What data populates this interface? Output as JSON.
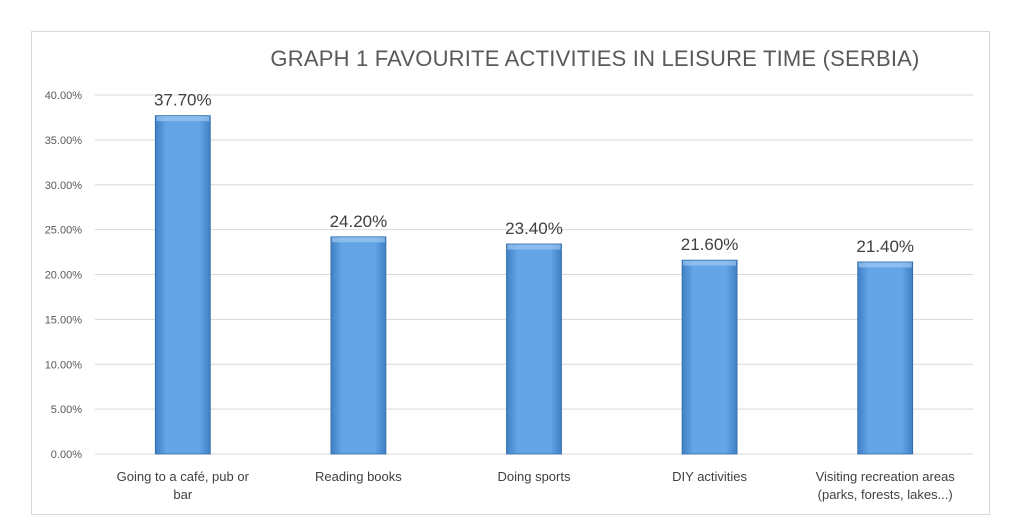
{
  "chart_data": {
    "type": "bar",
    "title": "GRAPH 1 FAVOURITE ACTIVITIES IN LEISURE TIME (SERBIA)",
    "categories": [
      [
        "Going to a café, pub or",
        "bar"
      ],
      [
        "Reading books"
      ],
      [
        "Doing sports"
      ],
      [
        "DIY activities"
      ],
      [
        "Visiting recreation areas",
        "(parks, forests, lakes...)"
      ]
    ],
    "values": [
      37.7,
      24.2,
      23.4,
      21.6,
      21.4
    ],
    "data_labels": [
      "37.70%",
      "24.20%",
      "23.40%",
      "21.60%",
      "21.40%"
    ],
    "ylim": [
      0,
      40
    ],
    "yticks": [
      "0.00%",
      "5.00%",
      "10.00%",
      "15.00%",
      "20.00%",
      "25.00%",
      "30.00%",
      "35.00%",
      "40.00%"
    ],
    "grid": true,
    "colors": {
      "bar": "#5fa3e3",
      "bar_edge": "#2f6aa8",
      "grid": "#d9d9d9"
    }
  }
}
